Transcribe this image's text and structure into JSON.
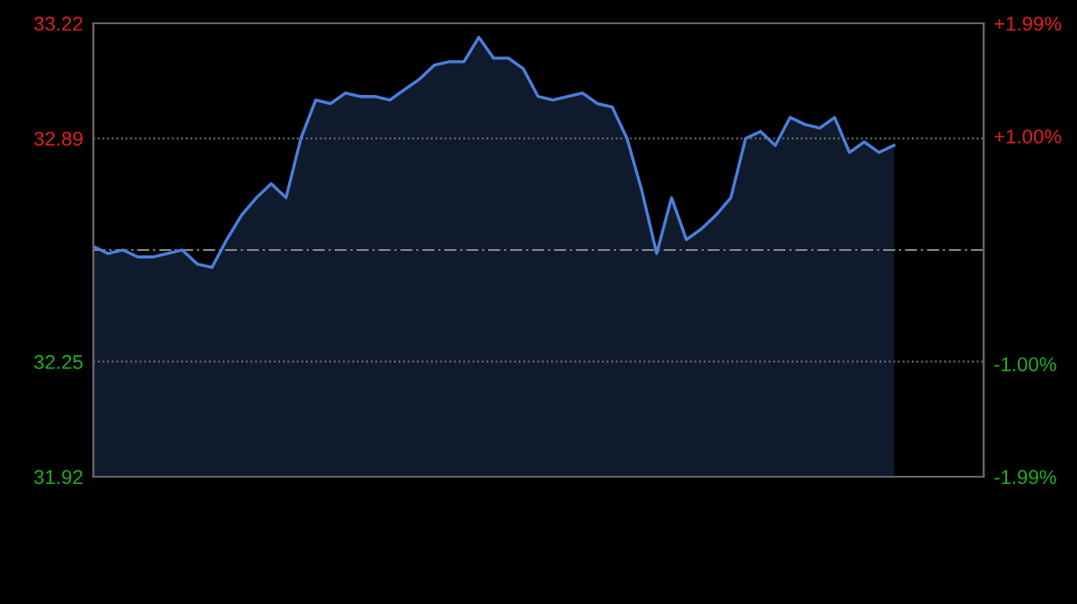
{
  "chart_data": {
    "type": "area",
    "categories": [
      null,
      null,
      null,
      null,
      null,
      null,
      null,
      null,
      null,
      null,
      null,
      null,
      null,
      null,
      null,
      null,
      null,
      null,
      null,
      null,
      null,
      null,
      null,
      null,
      null,
      null,
      null,
      null,
      null,
      null,
      null,
      null,
      null,
      null,
      null,
      null,
      null,
      null,
      null,
      null,
      null,
      null,
      null,
      null,
      null,
      null,
      null,
      null,
      null,
      null,
      null,
      null,
      null,
      null,
      null
    ],
    "series": [
      {
        "color": "#4a80dc",
        "values": [
          32.58,
          32.56,
          32.57,
          32.55,
          32.55,
          32.56,
          32.57,
          32.53,
          32.52,
          32.6,
          32.67,
          32.72,
          32.76,
          32.72,
          32.89,
          33.0,
          32.99,
          33.02,
          33.01,
          33.01,
          33.0,
          33.03,
          33.06,
          33.1,
          33.11,
          33.11,
          33.18,
          33.12,
          33.12,
          33.09,
          33.01,
          33.0,
          33.01,
          33.02,
          32.99,
          32.98,
          32.89,
          32.74,
          32.56,
          32.72,
          32.6,
          32.63,
          32.67,
          32.72,
          32.89,
          32.91,
          32.87,
          32.95,
          32.93,
          32.92,
          32.95,
          32.85,
          32.88,
          32.85,
          32.87
        ]
      }
    ],
    "ylim": [
      31.92,
      33.22
    ],
    "yticks": [
      31.92,
      32.25,
      32.89,
      33.22
    ],
    "y2lim": [
      -1.99,
      1.99
    ],
    "y2ticks": [
      {
        "value": -1.99,
        "label": "-1.99%"
      },
      {
        "value": -1.0,
        "label": "-1.00%"
      },
      {
        "value": 1.0,
        "label": "+1.00%"
      },
      {
        "value": 1.99,
        "label": "+1.99%"
      }
    ],
    "ref_lines": [
      {
        "axis": "y",
        "value": 32.57,
        "line_style": "dashed",
        "color": "#888888"
      }
    ],
    "grid": "y",
    "tick_labels": "y"
  }
}
